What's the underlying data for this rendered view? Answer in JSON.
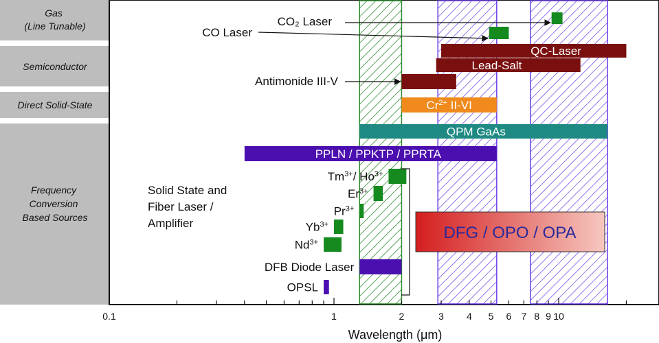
{
  "chart_data": {
    "type": "bar",
    "x_scale": "log",
    "xlim": [
      0.1,
      30
    ],
    "xlabel": "Wavelength (μm)",
    "x_ticks": [
      0.1,
      1,
      2,
      3,
      4,
      5,
      6,
      7,
      8,
      9,
      10
    ],
    "x_tick_labels": [
      "0.1",
      "1",
      "2",
      "3",
      "4",
      "5",
      "6",
      "7",
      "8",
      "9",
      "10"
    ],
    "categories": [
      "Gas\n(Line Tunable)",
      "Semiconductor",
      "Direct Solid-State",
      "Frequency\nConversion\nBased Sources"
    ],
    "regions": [
      {
        "x": [
          1.3,
          2.0
        ],
        "color": "#2e8b2e",
        "pattern": "hatch"
      },
      {
        "x": [
          2.9,
          5.3
        ],
        "color": "#6a3de8",
        "pattern": "hatch"
      },
      {
        "x": [
          7.5,
          16.5
        ],
        "color": "#6a3de8",
        "pattern": "hatch"
      }
    ],
    "series": [
      {
        "category": "Gas\n(Line Tunable)",
        "label": "CO₂ Laser",
        "x": [
          9.3,
          10.4
        ],
        "color": "#158a1e",
        "label_side": "left"
      },
      {
        "category": "Gas\n(Line Tunable)",
        "label": "CO Laser",
        "x": [
          4.9,
          6.0
        ],
        "color": "#158a1e",
        "label_side": "left"
      },
      {
        "category": "Semiconductor",
        "label": "QC-Laser",
        "x": [
          3.0,
          20.0
        ],
        "color": "#7a0f0f",
        "label_side": "inside"
      },
      {
        "category": "Semiconductor",
        "label": "Lead-Salt",
        "x": [
          2.85,
          12.5
        ],
        "color": "#7a0f0f",
        "label_side": "inside"
      },
      {
        "category": "Semiconductor",
        "label": "Antimonide III-V",
        "x": [
          2.0,
          3.5
        ],
        "color": "#7a0f0f",
        "label_side": "left"
      },
      {
        "category": "Direct Solid-State",
        "label": "Cr²⁺ II-VI",
        "x": [
          2.0,
          5.3
        ],
        "color": "#f08a1c",
        "label_side": "inside"
      },
      {
        "category": "Frequency\nConversion\nBased Sources",
        "label": "QPM GaAs",
        "x": [
          1.3,
          16.5
        ],
        "color": "#1f8a83",
        "label_side": "inside"
      },
      {
        "category": "Frequency\nConversion\nBased Sources",
        "label": "PPLN / PPKTP / PPRTA",
        "x": [
          0.4,
          5.3
        ],
        "color": "#4b0fb0",
        "label_side": "inside"
      },
      {
        "category": "Frequency\nConversion\nBased Sources",
        "label": "Tm³⁺/ Ho³⁺",
        "x": [
          1.75,
          2.1
        ],
        "color": "#158a1e",
        "label_side": "left"
      },
      {
        "category": "Frequency\nConversion\nBased Sources",
        "label": "Er³⁺",
        "x": [
          1.5,
          1.65
        ],
        "color": "#158a1e",
        "label_side": "left"
      },
      {
        "category": "Frequency\nConversion\nBased Sources",
        "label": "Pr³⁺",
        "x": [
          1.3,
          1.35
        ],
        "color": "#158a1e",
        "label_side": "left"
      },
      {
        "category": "Frequency\nConversion\nBased Sources",
        "label": "Yb³⁺",
        "x": [
          1.0,
          1.1
        ],
        "color": "#158a1e",
        "label_side": "left"
      },
      {
        "category": "Frequency\nConversion\nBased Sources",
        "label": "Nd³⁺",
        "x": [
          0.9,
          1.08
        ],
        "color": "#158a1e",
        "label_side": "left"
      },
      {
        "category": "Frequency\nConversion\nBased Sources",
        "label": "DFB Diode Laser",
        "x": [
          1.3,
          2.0
        ],
        "color": "#4b0fb0",
        "label_side": "left"
      },
      {
        "category": "Frequency\nConversion\nBased Sources",
        "label": "OPSL",
        "x": [
          0.9,
          0.95
        ],
        "color": "#4b0fb0",
        "label_side": "left"
      }
    ],
    "annotations": {
      "group_label": [
        "Solid State and",
        "Fiber Laser /",
        "Amplifier"
      ],
      "callout": "DFG / OPO / OPA",
      "callout_colors": [
        "#d41e1e",
        "#f6c7bf"
      ]
    },
    "grid": false,
    "legend": "none"
  }
}
